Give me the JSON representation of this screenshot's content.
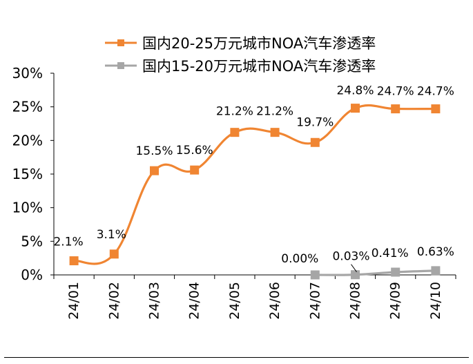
{
  "chart_data": {
    "type": "line",
    "categories": [
      "24/01",
      "24/02",
      "24/03",
      "24/04",
      "24/05",
      "24/06",
      "24/07",
      "24/08",
      "24/09",
      "24/10"
    ],
    "ylim": [
      0,
      30
    ],
    "y_ticks": [
      0,
      5,
      10,
      15,
      20,
      25,
      30
    ],
    "y_tick_labels": [
      "0%",
      "5%",
      "10%",
      "15%",
      "20%",
      "25%",
      "30%"
    ],
    "grid": false,
    "legend_position": "top",
    "series": [
      {
        "name": "国内20-25万元城市NOA汽车渗透率",
        "color": "#F08532",
        "marker": "square",
        "values": [
          2.1,
          3.1,
          15.5,
          15.6,
          21.2,
          21.2,
          19.7,
          24.8,
          24.7,
          24.7
        ],
        "labels": [
          "2.1%",
          "3.1%",
          "15.5%",
          "15.6%",
          "21.2%",
          "21.2%",
          "19.7%",
          "24.8%",
          "24.7%",
          "24.7%"
        ]
      },
      {
        "name": "国内15-20万元城市NOA汽车渗透率",
        "color": "#A6A6A6",
        "marker": "square",
        "values": [
          null,
          null,
          null,
          null,
          null,
          null,
          0.0,
          0.03,
          0.41,
          0.63
        ],
        "labels": [
          "",
          "",
          "",
          "",
          "",
          "",
          "0.00%",
          "0.03%",
          "0.41%",
          "0.63%"
        ]
      }
    ]
  }
}
